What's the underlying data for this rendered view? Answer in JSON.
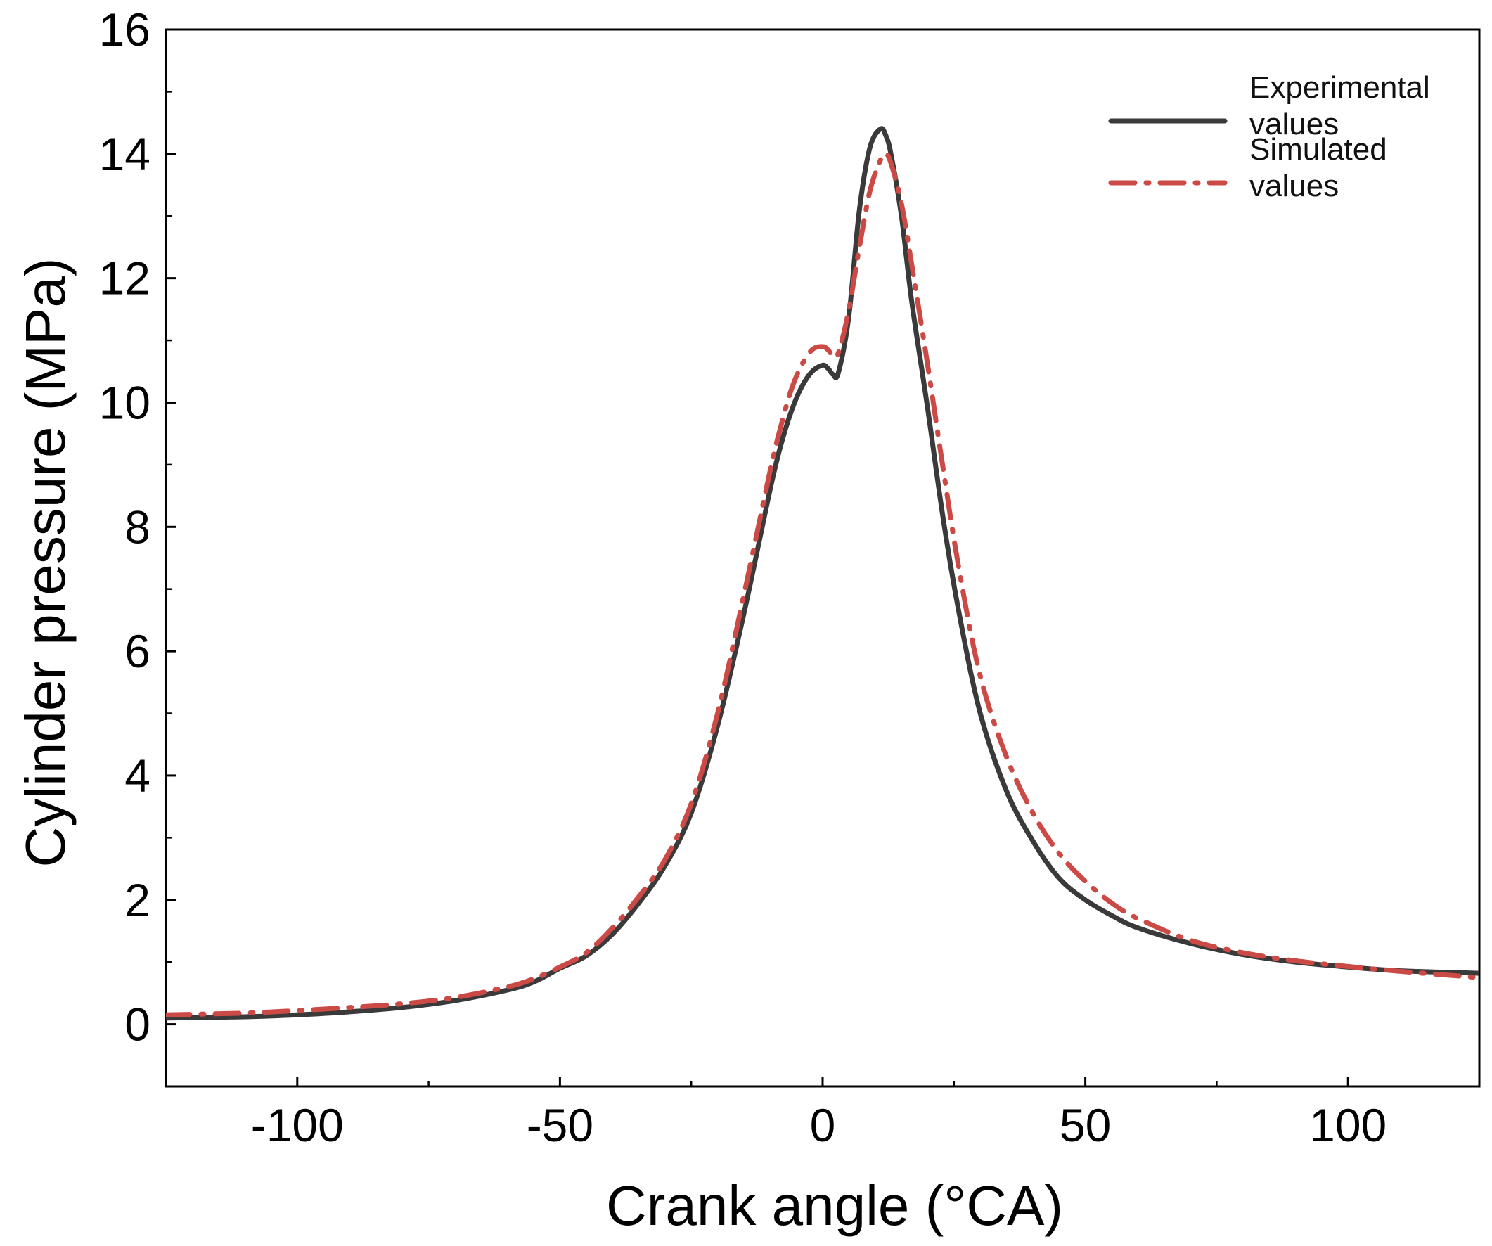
{
  "chart_data": {
    "type": "line",
    "title": "",
    "xlabel": "Crank angle (°CA)",
    "ylabel": "Cylinder pressure (MPa)",
    "xlim": [
      -125,
      125
    ],
    "ylim": [
      -1,
      16
    ],
    "x_ticks": [
      -100,
      -50,
      0,
      50,
      100
    ],
    "x_tick_labels": [
      "-100",
      "-50",
      "0",
      "50",
      "100"
    ],
    "x_minor_ticks": [
      -75,
      -25,
      25,
      75
    ],
    "y_ticks": [
      0,
      2,
      4,
      6,
      8,
      10,
      12,
      14,
      16
    ],
    "y_tick_labels": [
      "0",
      "2",
      "4",
      "6",
      "8",
      "10",
      "12",
      "14",
      "16"
    ],
    "y_minor_ticks": [
      1,
      3,
      5,
      7,
      9,
      11,
      13,
      15
    ],
    "grid": false,
    "legend_position": "top-right",
    "series": [
      {
        "name": "Experimental values",
        "legend_lines": [
          "Experimental",
          "values"
        ],
        "color": "#3a3a3a",
        "style": "solid",
        "x": [
          -125,
          -110,
          -100,
          -90,
          -80,
          -70,
          -60,
          -55,
          -50,
          -45,
          -40,
          -35,
          -30,
          -25,
          -20,
          -15,
          -10,
          -8,
          -6,
          -4,
          -2,
          0,
          1,
          2,
          3,
          5,
          7,
          9,
          11,
          12,
          13,
          15,
          17,
          20,
          23,
          26,
          30,
          35,
          40,
          45,
          50,
          55,
          60,
          70,
          80,
          90,
          100,
          110,
          125
        ],
        "y": [
          0.1,
          0.12,
          0.15,
          0.2,
          0.27,
          0.38,
          0.55,
          0.68,
          0.9,
          1.1,
          1.45,
          1.95,
          2.55,
          3.4,
          4.8,
          6.6,
          8.6,
          9.3,
          9.85,
          10.25,
          10.5,
          10.6,
          10.55,
          10.45,
          10.48,
          11.4,
          13.1,
          14.1,
          14.4,
          14.3,
          14.0,
          13.0,
          11.6,
          9.9,
          8.1,
          6.6,
          5.0,
          3.75,
          2.95,
          2.35,
          2.0,
          1.75,
          1.55,
          1.3,
          1.12,
          1.0,
          0.92,
          0.86,
          0.82
        ]
      },
      {
        "name": "Simulated values",
        "legend_lines": [
          "Simulated",
          "values"
        ],
        "color": "#cc4a46",
        "style": "dash-dot",
        "x": [
          -125,
          -110,
          -100,
          -90,
          -80,
          -70,
          -60,
          -55,
          -50,
          -45,
          -40,
          -35,
          -30,
          -25,
          -20,
          -15,
          -10,
          -8,
          -6,
          -4,
          -2,
          0,
          1,
          2,
          3,
          5,
          7,
          9,
          11,
          12,
          13,
          15,
          17,
          20,
          23,
          26,
          30,
          35,
          40,
          45,
          50,
          55,
          60,
          70,
          80,
          90,
          100,
          110,
          125
        ],
        "y": [
          0.15,
          0.18,
          0.22,
          0.27,
          0.33,
          0.43,
          0.6,
          0.73,
          0.92,
          1.15,
          1.55,
          2.05,
          2.65,
          3.55,
          5.0,
          6.9,
          8.9,
          9.6,
          10.2,
          10.6,
          10.85,
          10.9,
          10.85,
          10.75,
          10.8,
          11.5,
          12.5,
          13.4,
          13.9,
          14.0,
          13.85,
          13.2,
          12.2,
          10.6,
          8.9,
          7.3,
          5.6,
          4.3,
          3.4,
          2.75,
          2.3,
          1.95,
          1.7,
          1.35,
          1.15,
          1.02,
          0.93,
          0.85,
          0.75
        ]
      }
    ]
  }
}
